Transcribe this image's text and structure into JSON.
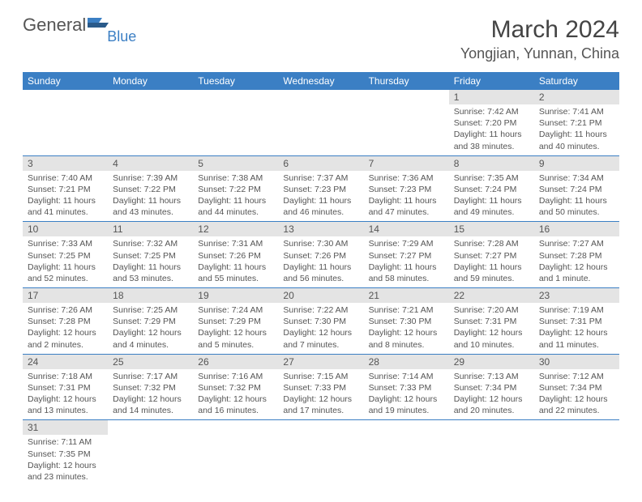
{
  "logo": {
    "text1": "General",
    "text2": "Blue"
  },
  "title": "March 2024",
  "location": "Yongjian, Yunnan, China",
  "dayHeaders": [
    "Sunday",
    "Monday",
    "Tuesday",
    "Wednesday",
    "Thursday",
    "Friday",
    "Saturday"
  ],
  "colors": {
    "header_bg": "#3b7fc4",
    "header_text": "#ffffff",
    "daynum_bg": "#e4e4e4",
    "row_border": "#3b7fc4",
    "text": "#555555"
  },
  "weeks": [
    [
      null,
      null,
      null,
      null,
      null,
      {
        "d": "1",
        "sr": "7:42 AM",
        "ss": "7:20 PM",
        "dl": "11 hours and 38 minutes."
      },
      {
        "d": "2",
        "sr": "7:41 AM",
        "ss": "7:21 PM",
        "dl": "11 hours and 40 minutes."
      }
    ],
    [
      {
        "d": "3",
        "sr": "7:40 AM",
        "ss": "7:21 PM",
        "dl": "11 hours and 41 minutes."
      },
      {
        "d": "4",
        "sr": "7:39 AM",
        "ss": "7:22 PM",
        "dl": "11 hours and 43 minutes."
      },
      {
        "d": "5",
        "sr": "7:38 AM",
        "ss": "7:22 PM",
        "dl": "11 hours and 44 minutes."
      },
      {
        "d": "6",
        "sr": "7:37 AM",
        "ss": "7:23 PM",
        "dl": "11 hours and 46 minutes."
      },
      {
        "d": "7",
        "sr": "7:36 AM",
        "ss": "7:23 PM",
        "dl": "11 hours and 47 minutes."
      },
      {
        "d": "8",
        "sr": "7:35 AM",
        "ss": "7:24 PM",
        "dl": "11 hours and 49 minutes."
      },
      {
        "d": "9",
        "sr": "7:34 AM",
        "ss": "7:24 PM",
        "dl": "11 hours and 50 minutes."
      }
    ],
    [
      {
        "d": "10",
        "sr": "7:33 AM",
        "ss": "7:25 PM",
        "dl": "11 hours and 52 minutes."
      },
      {
        "d": "11",
        "sr": "7:32 AM",
        "ss": "7:25 PM",
        "dl": "11 hours and 53 minutes."
      },
      {
        "d": "12",
        "sr": "7:31 AM",
        "ss": "7:26 PM",
        "dl": "11 hours and 55 minutes."
      },
      {
        "d": "13",
        "sr": "7:30 AM",
        "ss": "7:26 PM",
        "dl": "11 hours and 56 minutes."
      },
      {
        "d": "14",
        "sr": "7:29 AM",
        "ss": "7:27 PM",
        "dl": "11 hours and 58 minutes."
      },
      {
        "d": "15",
        "sr": "7:28 AM",
        "ss": "7:27 PM",
        "dl": "11 hours and 59 minutes."
      },
      {
        "d": "16",
        "sr": "7:27 AM",
        "ss": "7:28 PM",
        "dl": "12 hours and 1 minute."
      }
    ],
    [
      {
        "d": "17",
        "sr": "7:26 AM",
        "ss": "7:28 PM",
        "dl": "12 hours and 2 minutes."
      },
      {
        "d": "18",
        "sr": "7:25 AM",
        "ss": "7:29 PM",
        "dl": "12 hours and 4 minutes."
      },
      {
        "d": "19",
        "sr": "7:24 AM",
        "ss": "7:29 PM",
        "dl": "12 hours and 5 minutes."
      },
      {
        "d": "20",
        "sr": "7:22 AM",
        "ss": "7:30 PM",
        "dl": "12 hours and 7 minutes."
      },
      {
        "d": "21",
        "sr": "7:21 AM",
        "ss": "7:30 PM",
        "dl": "12 hours and 8 minutes."
      },
      {
        "d": "22",
        "sr": "7:20 AM",
        "ss": "7:31 PM",
        "dl": "12 hours and 10 minutes."
      },
      {
        "d": "23",
        "sr": "7:19 AM",
        "ss": "7:31 PM",
        "dl": "12 hours and 11 minutes."
      }
    ],
    [
      {
        "d": "24",
        "sr": "7:18 AM",
        "ss": "7:31 PM",
        "dl": "12 hours and 13 minutes."
      },
      {
        "d": "25",
        "sr": "7:17 AM",
        "ss": "7:32 PM",
        "dl": "12 hours and 14 minutes."
      },
      {
        "d": "26",
        "sr": "7:16 AM",
        "ss": "7:32 PM",
        "dl": "12 hours and 16 minutes."
      },
      {
        "d": "27",
        "sr": "7:15 AM",
        "ss": "7:33 PM",
        "dl": "12 hours and 17 minutes."
      },
      {
        "d": "28",
        "sr": "7:14 AM",
        "ss": "7:33 PM",
        "dl": "12 hours and 19 minutes."
      },
      {
        "d": "29",
        "sr": "7:13 AM",
        "ss": "7:34 PM",
        "dl": "12 hours and 20 minutes."
      },
      {
        "d": "30",
        "sr": "7:12 AM",
        "ss": "7:34 PM",
        "dl": "12 hours and 22 minutes."
      }
    ],
    [
      {
        "d": "31",
        "sr": "7:11 AM",
        "ss": "7:35 PM",
        "dl": "12 hours and 23 minutes."
      },
      null,
      null,
      null,
      null,
      null,
      null
    ]
  ],
  "labels": {
    "sunrise": "Sunrise: ",
    "sunset": "Sunset: ",
    "daylight": "Daylight: "
  }
}
